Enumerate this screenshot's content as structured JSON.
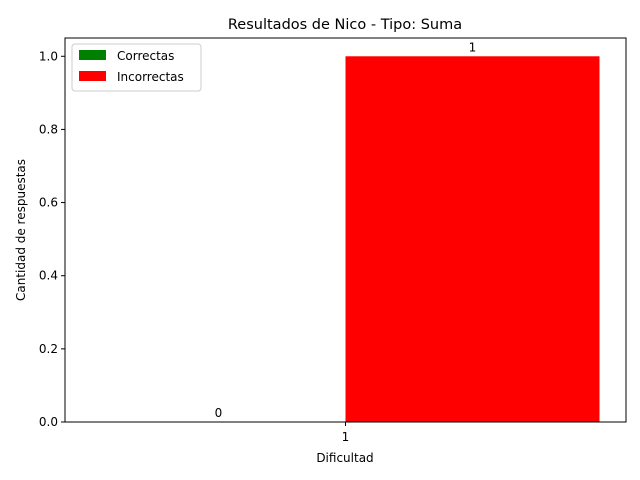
{
  "chart_data": {
    "type": "bar",
    "title": "Resultados de Nico - Tipo: Suma",
    "xlabel": "Dificultad",
    "ylabel": "Cantidad de respuestas",
    "categories": [
      "1"
    ],
    "series": [
      {
        "name": "Correctas",
        "values": [
          0
        ],
        "color": "#008000"
      },
      {
        "name": "Incorrectas",
        "values": [
          1
        ],
        "color": "#ff0000"
      }
    ],
    "ylim": [
      0,
      1.05
    ],
    "yticks": [
      "0.0",
      "0.2",
      "0.4",
      "0.6",
      "0.8",
      "1.0"
    ],
    "bar_labels": [
      "0",
      "1"
    ],
    "legend_position": "top-left",
    "grid": false
  }
}
